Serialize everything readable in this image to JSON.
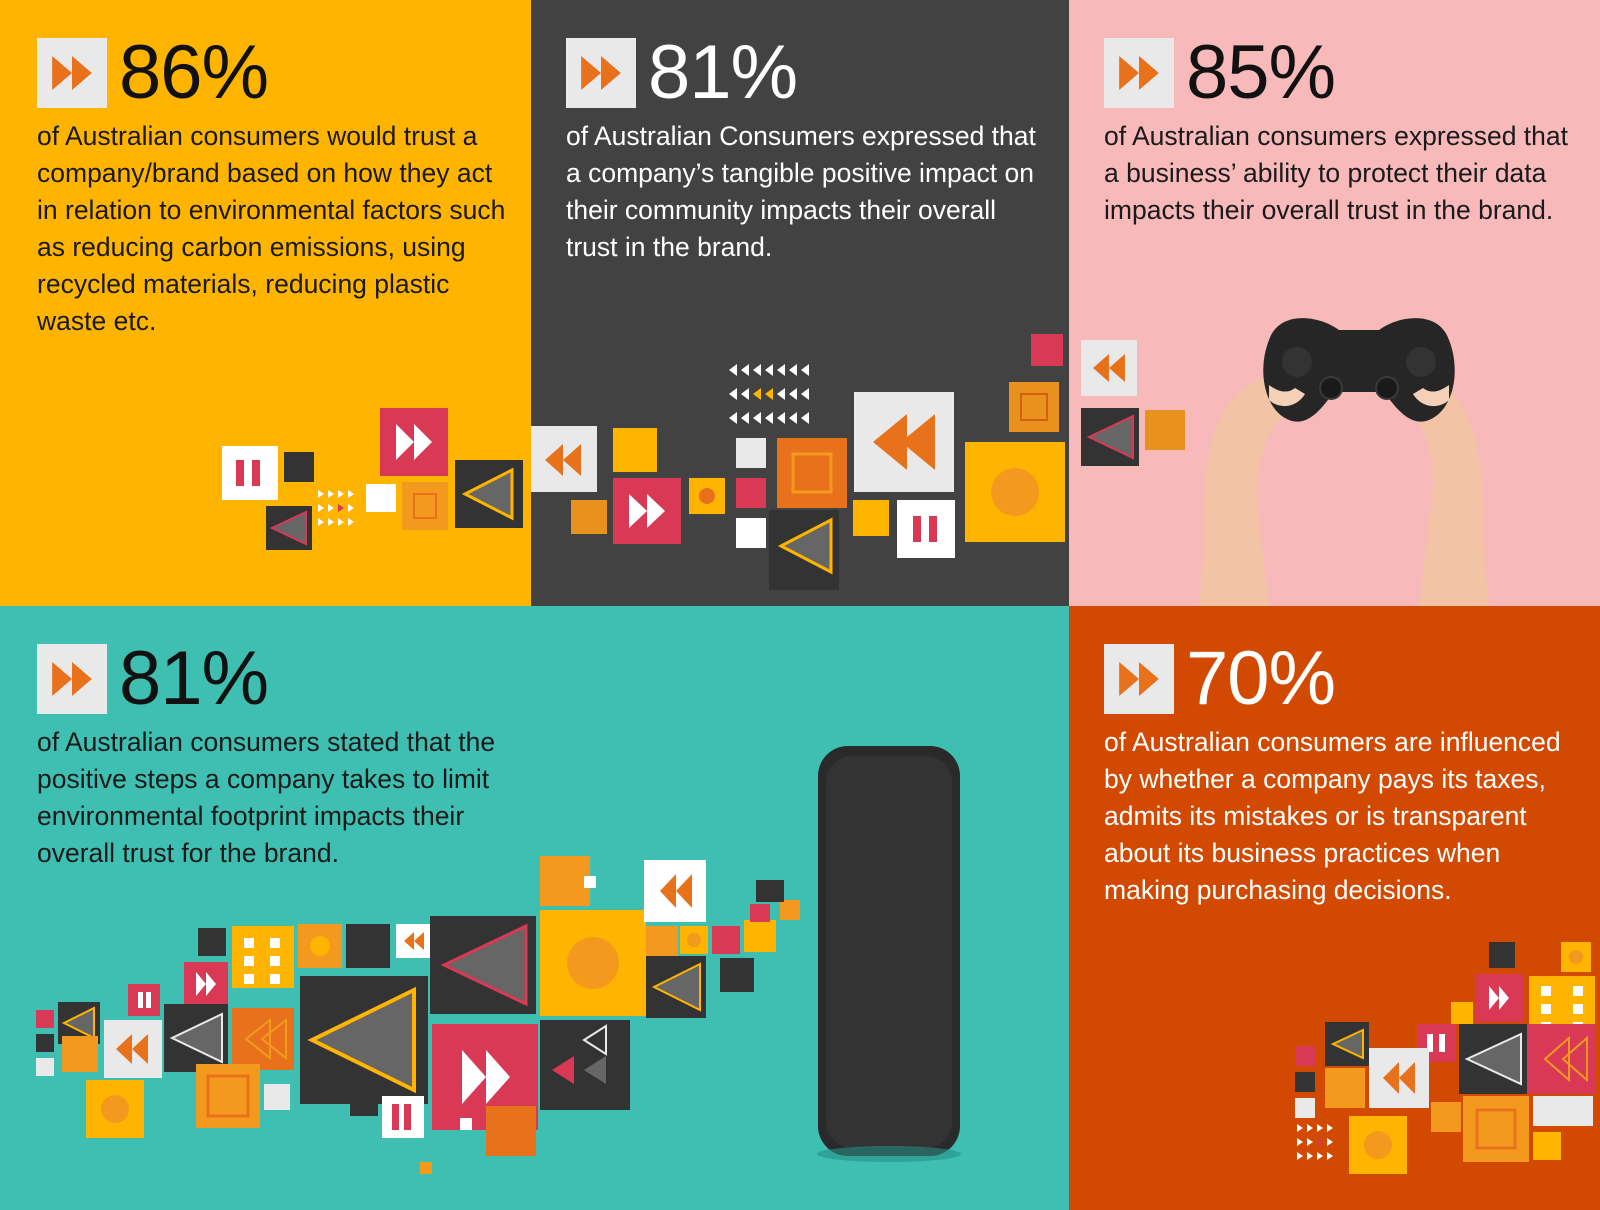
{
  "colors": {
    "amber": "#ffb400",
    "charcoal": "#424242",
    "pink": "#f7b9b9",
    "teal": "#3ebfb2",
    "burnt_orange": "#d24a01",
    "accent_orange": "#e8721c",
    "accent_red": "#d93954",
    "light_grey": "#e9e9e9"
  },
  "icons": {
    "stat_marker": "fast-forward-icon",
    "decor": [
      "rewind-icon",
      "pause-icon",
      "play-triangle-icon"
    ]
  },
  "stats": [
    {
      "value": "86%",
      "text": "of Australian consumers would trust a company/brand based on how they act in relation to environmental factors such as reducing carbon emissions, using recycled materials, reducing plastic waste etc."
    },
    {
      "value": "81%",
      "text": "of Australian Consumers expressed that a company’s tangible positive impact on their community impacts their overall trust in the brand."
    },
    {
      "value": "85%",
      "text": "of Australian consumers expressed that a business’ ability to protect their data impacts their overall trust in the brand."
    },
    {
      "value": "81%",
      "text": "of Australian consumers stated that the positive steps a company takes to limit environmental footprint impacts their overall trust for the brand."
    },
    {
      "value": "70%",
      "text": "of Australian consumers are influenced by whether a company pays its taxes, admits its mistakes or is transparent about its business practices when making purchasing decisions."
    }
  ]
}
